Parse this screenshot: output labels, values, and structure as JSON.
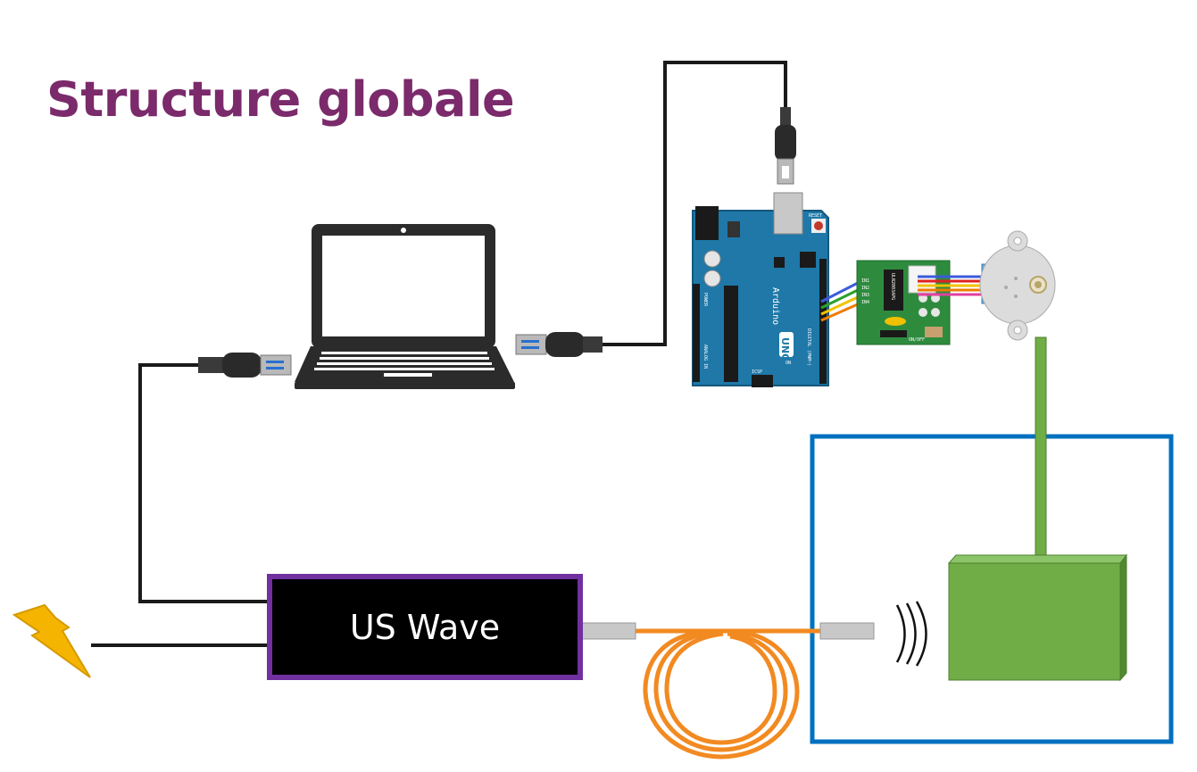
{
  "title": "Structure globale",
  "colors": {
    "title": "#7b2a6b",
    "generator_border": "#7030a0",
    "generator_fill": "#000000",
    "fiber": "#f28a22",
    "sample": "#70ad47",
    "enclosure": "#0070c0",
    "arduino": "#1f78a8",
    "driver_board": "#2e8b3e",
    "motor": "#dcdcdc",
    "lightning": "#f5b400"
  },
  "generator": {
    "label": "US Wave"
  },
  "arduino_board": {
    "brand": "Arduino",
    "model": "UNO",
    "icsp": "ICSP",
    "reset": "RESET",
    "digital": "DIGITAL (PWM~)",
    "power": "POWER",
    "analog": "ANALOG IN",
    "on": "ON"
  },
  "driver": {
    "chip": "ULN2003APG",
    "switch": "ON/OFF",
    "pins": [
      "IN1",
      "IN2",
      "IN3",
      "IN4"
    ]
  },
  "icons": {
    "power_source": "lightning-icon",
    "computer": "laptop-icon",
    "cable_pc_power": "usb-a-connector-icon",
    "cable_pc_arduino": "usb-a-connector-icon",
    "cable_arduino": "usb-b-connector-icon",
    "controller": "arduino-uno-icon",
    "motor_driver": "stepper-driver-icon",
    "motor": "stepper-motor-icon",
    "waves": "ultrasound-waves-icon",
    "fiber": "optical-fiber-coil-icon"
  }
}
